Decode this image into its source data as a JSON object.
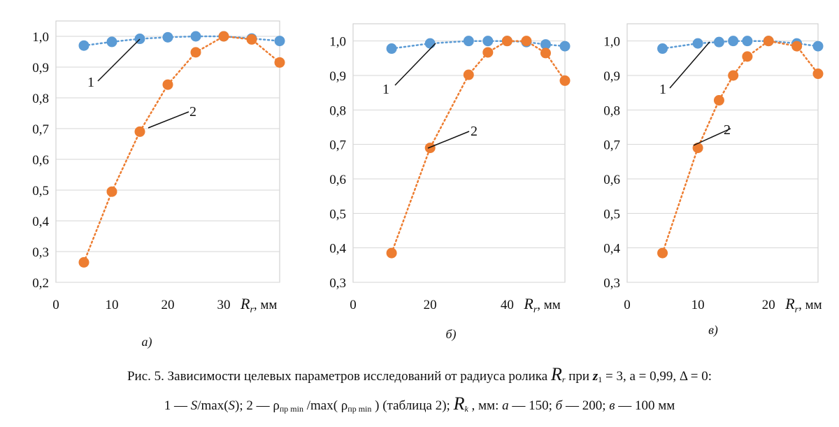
{
  "colors": {
    "series1": "#5b9bd5",
    "series2": "#ed7d31"
  },
  "chart_data": [
    {
      "type": "line",
      "panel_label": "а)",
      "xlabel_parts": [
        "R",
        "r",
        ", мм"
      ],
      "xticks": [
        "0",
        "10",
        "20",
        "30"
      ],
      "xlim": [
        0,
        40
      ],
      "ylim": [
        0.2,
        1.05
      ],
      "yticks": [
        "0,2",
        "0,3",
        "0,4",
        "0,5",
        "0,6",
        "0,7",
        "0,8",
        "0,9",
        "1,0"
      ],
      "grid": true,
      "series": [
        {
          "name": "1",
          "x": [
            5,
            10,
            15,
            20,
            25,
            30,
            35,
            40
          ],
          "y": [
            0.97,
            0.982,
            0.992,
            0.997,
            1.0,
            1.0,
            0.993,
            0.985
          ]
        },
        {
          "name": "2",
          "x": [
            5,
            10,
            15,
            20,
            25,
            30,
            35,
            40
          ],
          "y": [
            0.265,
            0.495,
            0.69,
            0.843,
            0.948,
            1.0,
            0.99,
            0.915
          ]
        }
      ]
    },
    {
      "type": "line",
      "panel_label": "б)",
      "xlabel_parts": [
        "R",
        "r",
        ", мм"
      ],
      "xticks": [
        "0",
        "20",
        "40"
      ],
      "xlim": [
        0,
        55
      ],
      "ylim": [
        0.3,
        1.05
      ],
      "yticks": [
        "0,3",
        "0,4",
        "0,5",
        "0,6",
        "0,7",
        "0,8",
        "0,9",
        "1,0"
      ],
      "grid": true,
      "series": [
        {
          "name": "1",
          "x": [
            10,
            20,
            30,
            35,
            40,
            45,
            50,
            55
          ],
          "y": [
            0.978,
            0.993,
            1.0,
            1.0,
            1.0,
            0.997,
            0.99,
            0.985
          ]
        },
        {
          "name": "2",
          "x": [
            10,
            20,
            30,
            35,
            40,
            45,
            50,
            55
          ],
          "y": [
            0.385,
            0.69,
            0.902,
            0.967,
            1.0,
            1.0,
            0.965,
            0.885
          ]
        }
      ]
    },
    {
      "type": "line",
      "panel_label": "в)",
      "xlabel_parts": [
        "R",
        "r",
        ", мм"
      ],
      "xticks": [
        "0",
        "10",
        "20"
      ],
      "xlim": [
        0,
        27
      ],
      "ylim": [
        0.3,
        1.05
      ],
      "yticks": [
        "0,3",
        "0,4",
        "0,5",
        "0,6",
        "0,7",
        "0,8",
        "0,9",
        "1,0"
      ],
      "grid": true,
      "series": [
        {
          "name": "1",
          "x": [
            5,
            10,
            13,
            15,
            17,
            20,
            24,
            27
          ],
          "y": [
            0.978,
            0.993,
            0.997,
            1.0,
            1.0,
            1.0,
            0.993,
            0.985
          ]
        },
        {
          "name": "2",
          "x": [
            5,
            10,
            13,
            15,
            17,
            20,
            24,
            27
          ],
          "y": [
            0.385,
            0.69,
            0.828,
            0.9,
            0.955,
            1.0,
            0.985,
            0.905
          ]
        }
      ]
    }
  ],
  "caption": {
    "line1": {
      "prefix": "Рис. 5. Зависимости целевых параметров исследований от радиуса ролика ",
      "R": "R",
      "R_sub": "r",
      "mid": "  при ",
      "z": "z",
      "z_sub": "1",
      "suffix": " = 3, a = 0,99, Δ = 0:"
    },
    "line2": {
      "p1": "1 — ",
      "S1": "S",
      "p2": "/max(",
      "S2": "S",
      "p3": "); 2 — ρ",
      "sub1": "пр min",
      "p4": " /max( ρ",
      "sub2": "пр min",
      "p5": " ) (таблица 2);  ",
      "Rk": "R",
      "Rk_sub": "k",
      "p6": " , мм: ",
      "a": "а",
      "p7": " — 150; ",
      "b": "б",
      "p8": " — 200; ",
      "v": "в",
      "p9": " — 100 мм"
    }
  }
}
